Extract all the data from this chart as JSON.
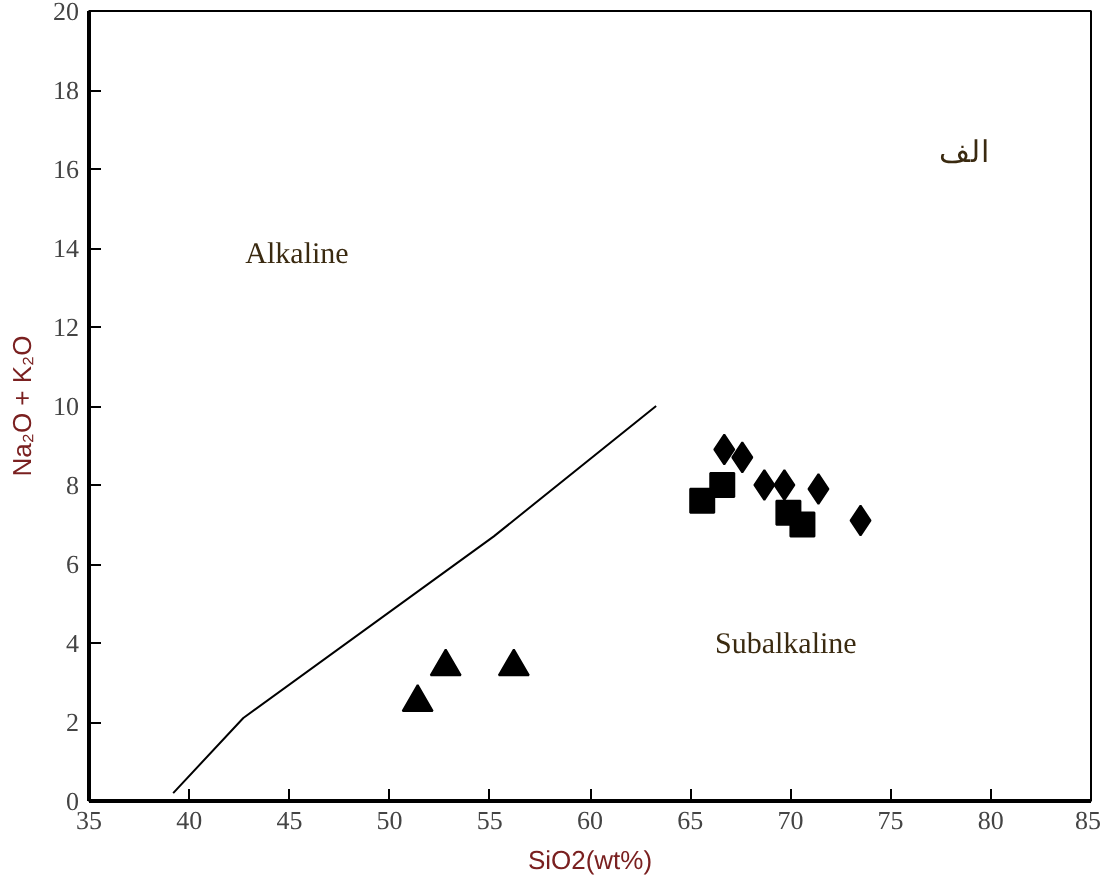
{
  "chart_data": {
    "type": "scatter",
    "xlabel": "SiO2(wt%)",
    "ylabel": "Na₂O + K₂O",
    "xlim": [
      35,
      85
    ],
    "xticks": [
      35,
      40,
      45,
      50,
      55,
      60,
      65,
      70,
      75,
      80,
      85
    ],
    "ylim": [
      0,
      20
    ],
    "yticks": [
      0,
      2,
      4,
      6,
      8,
      10,
      12,
      14,
      16,
      18,
      20
    ],
    "grid": false,
    "series": [
      {
        "type": "line",
        "color": "#000000",
        "marker": "none",
        "x": [
          39.2,
          42.7,
          55.2,
          63.3
        ],
        "values": [
          0.2,
          2.1,
          6.7,
          10.0
        ]
      },
      {
        "color": "#000000",
        "marker": "triangle",
        "x": [
          51.4,
          52.8,
          56.2
        ],
        "values": [
          2.5,
          3.4,
          3.4
        ]
      },
      {
        "color": "#000000",
        "marker": "square",
        "x": [
          65.6,
          66.6,
          69.9,
          70.6
        ],
        "values": [
          7.6,
          8.0,
          7.3,
          7.0
        ]
      },
      {
        "color": "#000000",
        "marker": "diamond",
        "x": [
          66.7,
          67.6,
          68.7,
          69.7,
          71.4,
          73.5
        ],
        "values": [
          8.9,
          8.7,
          8.0,
          8.0,
          7.9,
          7.1
        ]
      }
    ],
    "annotations": [
      "Alkaline",
      "Subalkaline",
      "الف"
    ]
  }
}
